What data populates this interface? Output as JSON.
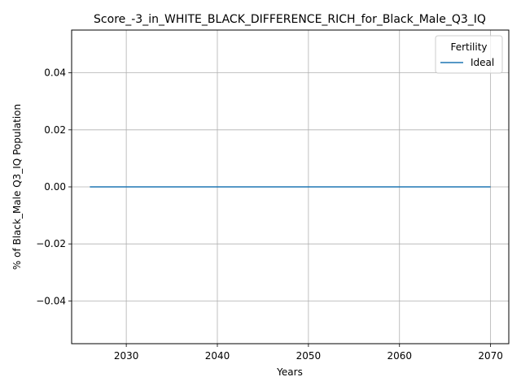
{
  "chart_data": {
    "type": "line",
    "title": "Score_-3_in_WHITE_BLACK_DIFFERENCE_RICH_for_Black_Male_Q3_IQ",
    "xlabel": "Years",
    "ylabel": "% of Black_Male Q3_IQ Population",
    "xlim": [
      2024,
      2072
    ],
    "ylim": [
      -0.055,
      0.055
    ],
    "x_ticks": [
      2030,
      2040,
      2050,
      2060,
      2070
    ],
    "y_ticks": [
      0.04,
      0.02,
      0.0,
      -0.02,
      -0.04
    ],
    "y_tick_labels": [
      "0.04",
      "0.02",
      "0.00",
      "−0.02",
      "−0.04"
    ],
    "grid": true,
    "legend": {
      "title": "Fertility",
      "placement": "top-right",
      "entries": [
        "Ideal"
      ]
    },
    "series": [
      {
        "name": "Ideal",
        "color": "#1f77b4",
        "x": [
          2026,
          2030,
          2035,
          2040,
          2045,
          2050,
          2055,
          2060,
          2065,
          2070
        ],
        "values": [
          0,
          0,
          0,
          0,
          0,
          0,
          0,
          0,
          0,
          0
        ]
      }
    ]
  }
}
